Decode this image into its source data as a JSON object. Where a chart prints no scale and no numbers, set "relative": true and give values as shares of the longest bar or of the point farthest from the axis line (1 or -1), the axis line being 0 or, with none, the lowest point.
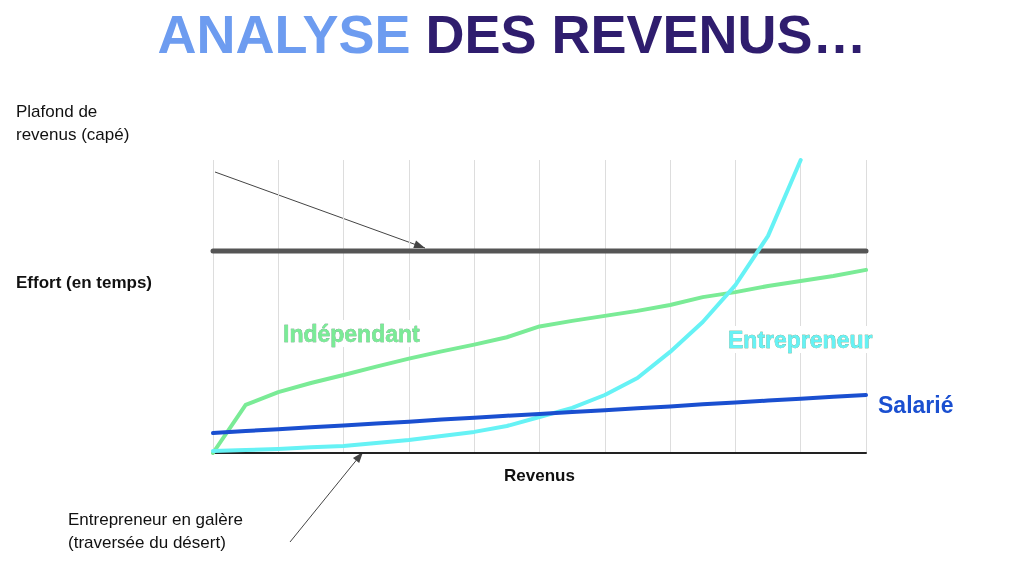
{
  "chart_data": {
    "type": "line",
    "title": "ANALYSE DES REVENUS…",
    "xlabel": "Revenus",
    "ylabel": "Effort (en temps)",
    "relative": true,
    "grid": "x",
    "legend": false,
    "marker": "none",
    "line_style": "solid",
    "categories": [
      null,
      null,
      null,
      null,
      null,
      null,
      null,
      null,
      null,
      null,
      null,
      null,
      null,
      null,
      null,
      null,
      null,
      null,
      null,
      null,
      null
    ],
    "series": [
      {
        "color": "#555555",
        "values": [
          0.689,
          0.689,
          0.689,
          0.689,
          0.689,
          0.689,
          0.689,
          0.689,
          0.689,
          0.689,
          0.689,
          0.689,
          0.689,
          0.689,
          0.689,
          0.689,
          0.689,
          0.689,
          0.689,
          0.689,
          0.689
        ]
      },
      {
        "name": "Indépendant",
        "color": "#7aeb96",
        "values": [
          0,
          0.164,
          0.208,
          0.239,
          0.266,
          0.295,
          0.322,
          0.347,
          0.37,
          0.395,
          0.432,
          0.451,
          0.468,
          0.485,
          0.505,
          0.532,
          0.549,
          0.57,
          0.587,
          0.604,
          0.625
        ]
      },
      {
        "name": "Entrepreneur",
        "color": "#66f2f5",
        "values": [
          0.007,
          0.01,
          0.014,
          0.02,
          0.024,
          0.034,
          0.044,
          0.058,
          0.072,
          0.092,
          0.123,
          0.154,
          0.198,
          0.256,
          0.345,
          0.447,
          0.573,
          0.741,
          1,
          null,
          null
        ]
      },
      {
        "name": "Salarié",
        "color": "#1a4fd0",
        "values": [
          0.068,
          0.075,
          0.081,
          0.088,
          0.094,
          0.101,
          0.107,
          0.114,
          0.12,
          0.127,
          0.133,
          0.14,
          0.146,
          0.153,
          0.159,
          0.166,
          0.172,
          0.179,
          0.185,
          0.192,
          0.198
        ]
      }
    ],
    "annotations": [
      "Plafond de\nrevenus (capé)",
      "Entrepreneur en galère\n(traversée du désert)"
    ]
  }
}
